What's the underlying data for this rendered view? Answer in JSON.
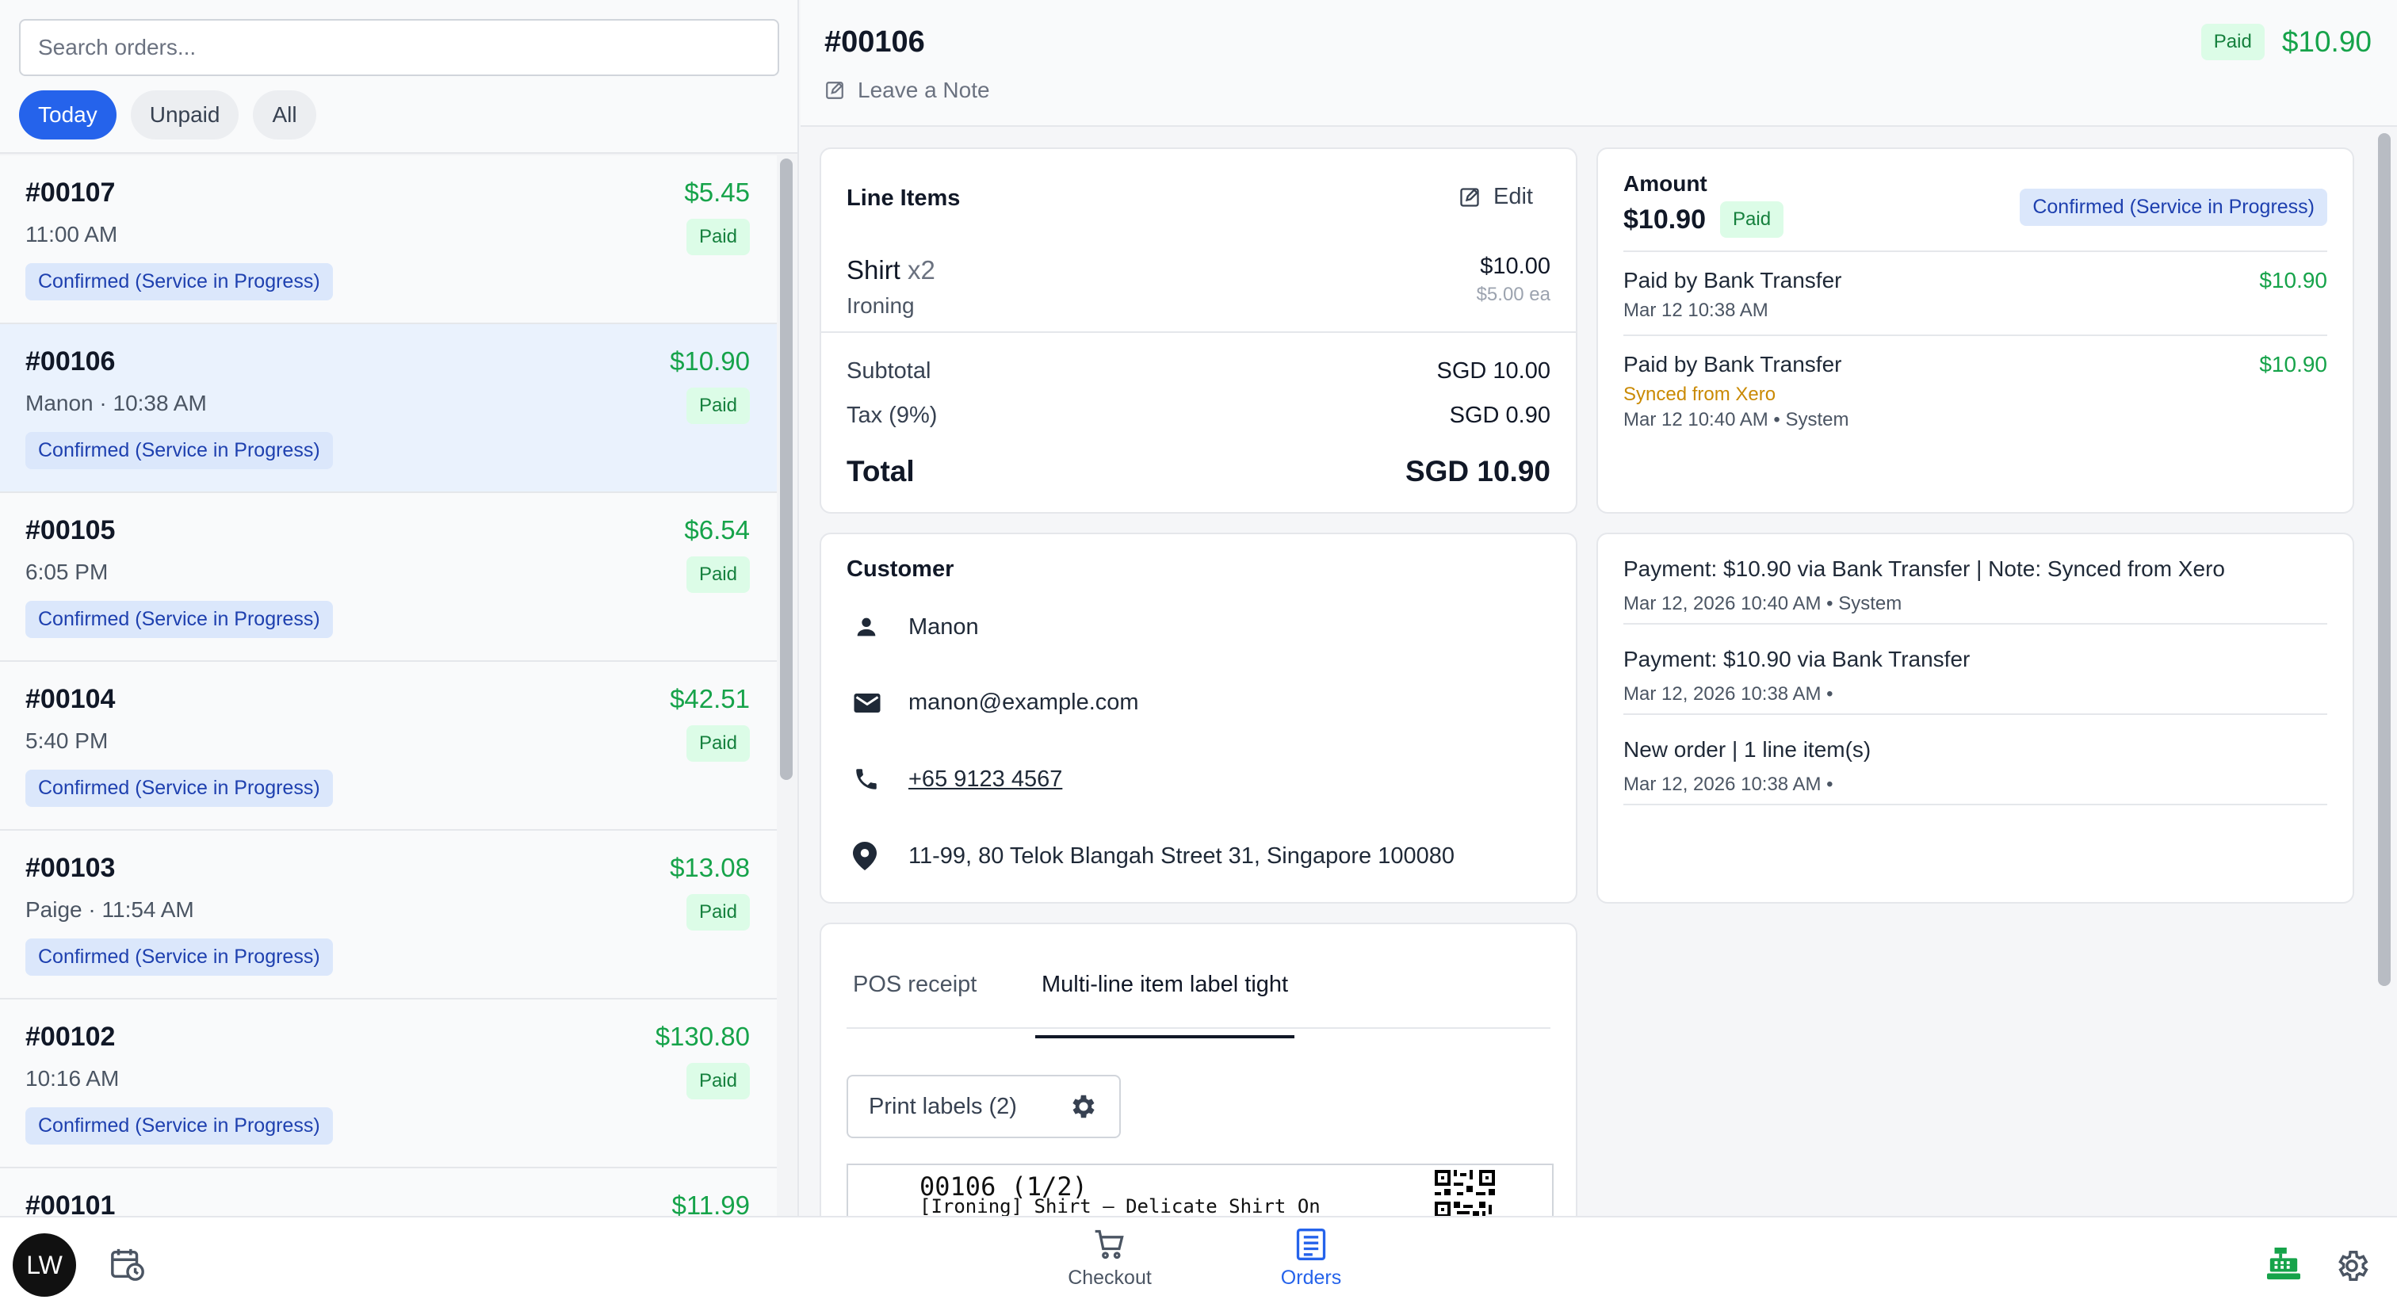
{
  "search": {
    "placeholder": "Search orders..."
  },
  "filters": [
    {
      "label": "Today",
      "active": true
    },
    {
      "label": "Unpaid",
      "active": false
    },
    {
      "label": "All",
      "active": false
    }
  ],
  "orders": [
    {
      "id": "#00107",
      "amount": "$5.45",
      "meta": "11:00 AM",
      "paid": "Paid",
      "status": "Confirmed (Service in Progress)"
    },
    {
      "id": "#00106",
      "amount": "$10.90",
      "meta": "Manon · 10:38 AM",
      "paid": "Paid",
      "status": "Confirmed (Service in Progress)",
      "selected": true
    },
    {
      "id": "#00105",
      "amount": "$6.54",
      "meta": "6:05 PM",
      "paid": "Paid",
      "status": "Confirmed (Service in Progress)"
    },
    {
      "id": "#00104",
      "amount": "$42.51",
      "meta": "5:40 PM",
      "paid": "Paid",
      "status": "Confirmed (Service in Progress)"
    },
    {
      "id": "#00103",
      "amount": "$13.08",
      "meta": "Paige · 11:54 AM",
      "paid": "Paid",
      "status": "Confirmed (Service in Progress)"
    },
    {
      "id": "#00102",
      "amount": "$130.80",
      "meta": "10:16 AM",
      "paid": "Paid",
      "status": "Confirmed (Service in Progress)"
    },
    {
      "id": "#00101",
      "amount": "$11.99",
      "meta": "",
      "paid": "",
      "status": ""
    }
  ],
  "header": {
    "title": "#00106",
    "note": "Leave a Note",
    "paid": "Paid",
    "amount": "$10.90"
  },
  "line_items": {
    "title": "Line Items",
    "edit": "Edit",
    "item": {
      "name": "Shirt",
      "qty": "x2",
      "service": "Ironing",
      "price": "$10.00",
      "each": "$5.00 ea"
    },
    "subtotal_label": "Subtotal",
    "subtotal": "SGD 10.00",
    "tax_label": "Tax (9%)",
    "tax": "SGD 0.90",
    "total_label": "Total",
    "total": "SGD 10.90"
  },
  "amount_card": {
    "label": "Amount",
    "value": "$10.90",
    "paid": "Paid",
    "status": "Confirmed (Service in Progress)",
    "payments": [
      {
        "method": "Paid by Bank Transfer",
        "amount": "$10.90",
        "synced": "",
        "time": "Mar 12 10:38 AM"
      },
      {
        "method": "Paid by Bank Transfer",
        "amount": "$10.90",
        "synced": "Synced from Xero",
        "time": "Mar 12 10:40 AM • System"
      }
    ]
  },
  "customer": {
    "title": "Customer",
    "name": "Manon",
    "email": "manon@example.com",
    "phone": "+65 9123 4567",
    "address": "11-99, 80 Telok Blangah Street 31, Singapore 100080"
  },
  "activity": [
    {
      "text": "Payment: $10.90 via Bank Transfer | Note: Synced from Xero",
      "sub": "Mar 12, 2026 10:40 AM • System"
    },
    {
      "text": "Payment: $10.90 via Bank Transfer",
      "sub": "Mar 12, 2026 10:38 AM •"
    },
    {
      "text": "New order | 1 line item(s)",
      "sub": "Mar 12, 2026 10:38 AM •"
    }
  ],
  "labels": {
    "tabs": [
      "POS receipt",
      "Multi-line item label tight"
    ],
    "active_tab": 1,
    "print": "Print labels (2)",
    "preview_line1": "00106 (1/2)",
    "preview_line2": "[Ironing] Shirt – Delicate Shirt On"
  },
  "bottom": {
    "avatar": "LW",
    "nav": [
      {
        "label": "Checkout",
        "icon": "cart-icon",
        "active": false
      },
      {
        "label": "Orders",
        "icon": "orders-list-icon",
        "active": true
      }
    ]
  },
  "colors": {
    "accent": "#2563eb",
    "money": "#16a34a",
    "paid_bg": "#dcfce7",
    "status_bg": "#dbe7fb",
    "synced": "#ca8a04"
  }
}
